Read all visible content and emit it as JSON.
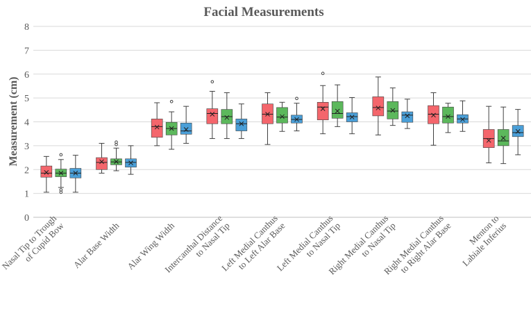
{
  "chart_data": {
    "type": "box",
    "title": "Facial Measurements",
    "ylabel": "Measurement (cm)",
    "xlabel": "",
    "ylim": [
      0,
      8
    ],
    "yticks": [
      "0",
      "1",
      "2",
      "3",
      "4",
      "5",
      "6",
      "7",
      "8"
    ],
    "grid": true,
    "series_colors": [
      "#F4666C",
      "#5CB85C",
      "#4A9FD8"
    ],
    "categories": [
      {
        "lines": [
          "Nasal Tip to Trough",
          "of Cupid Bow"
        ],
        "boxes": [
          {
            "min": 1.05,
            "q1": 1.68,
            "median": 1.85,
            "q3": 2.15,
            "max": 2.55,
            "mean": 1.88,
            "outliers": []
          },
          {
            "min": 1.25,
            "q1": 1.7,
            "median": 1.85,
            "q3": 2.02,
            "max": 2.42,
            "mean": 1.85,
            "outliers": [
              2.62,
              1.15,
              1.05
            ]
          },
          {
            "min": 1.05,
            "q1": 1.65,
            "median": 1.85,
            "q3": 2.05,
            "max": 2.6,
            "mean": 1.85,
            "outliers": []
          }
        ]
      },
      {
        "lines": [
          "Alar Base Width"
        ],
        "boxes": [
          {
            "min": 1.85,
            "q1": 2.0,
            "median": 2.3,
            "q3": 2.5,
            "max": 3.1,
            "mean": 2.33,
            "outliers": []
          },
          {
            "min": 1.95,
            "q1": 2.2,
            "median": 2.32,
            "q3": 2.45,
            "max": 2.9,
            "mean": 2.33,
            "outliers": [
              3.05,
              3.15
            ]
          },
          {
            "min": 1.8,
            "q1": 2.1,
            "median": 2.3,
            "q3": 2.45,
            "max": 3.0,
            "mean": 2.28,
            "outliers": []
          }
        ]
      },
      {
        "lines": [
          "Alar Wing Width"
        ],
        "boxes": [
          {
            "min": 3.0,
            "q1": 3.35,
            "median": 3.8,
            "q3": 4.12,
            "max": 4.8,
            "mean": 3.78,
            "outliers": []
          },
          {
            "min": 2.85,
            "q1": 3.45,
            "median": 3.72,
            "q3": 3.98,
            "max": 4.42,
            "mean": 3.72,
            "outliers": [
              4.85
            ]
          },
          {
            "min": 3.1,
            "q1": 3.48,
            "median": 3.62,
            "q3": 3.95,
            "max": 4.65,
            "mean": 3.68,
            "outliers": []
          }
        ]
      },
      {
        "lines": [
          "Intercanthal Distance",
          "to Nasal Tip"
        ],
        "boxes": [
          {
            "min": 3.3,
            "q1": 3.92,
            "median": 4.35,
            "q3": 4.55,
            "max": 5.28,
            "mean": 4.32,
            "outliers": [
              5.68
            ]
          },
          {
            "min": 3.3,
            "q1": 3.92,
            "median": 4.22,
            "q3": 4.52,
            "max": 5.22,
            "mean": 4.18,
            "outliers": []
          },
          {
            "min": 3.3,
            "q1": 3.62,
            "median": 3.92,
            "q3": 4.12,
            "max": 4.75,
            "mean": 3.92,
            "outliers": []
          }
        ]
      },
      {
        "lines": [
          "Left Medial Canthus",
          "to Left Alar Base"
        ],
        "boxes": [
          {
            "min": 3.05,
            "q1": 3.92,
            "median": 4.32,
            "q3": 4.75,
            "max": 5.22,
            "mean": 4.32,
            "outliers": []
          },
          {
            "min": 3.6,
            "q1": 3.95,
            "median": 4.2,
            "q3": 4.6,
            "max": 4.82,
            "mean": 4.22,
            "outliers": []
          },
          {
            "min": 3.62,
            "q1": 3.95,
            "median": 4.1,
            "q3": 4.28,
            "max": 4.78,
            "mean": 4.1,
            "outliers": [
              4.98
            ]
          }
        ]
      },
      {
        "lines": [
          "Left Medial Canthus",
          "to Nasal Tip"
        ],
        "boxes": [
          {
            "min": 3.5,
            "q1": 4.08,
            "median": 4.62,
            "q3": 4.82,
            "max": 5.52,
            "mean": 4.55,
            "outliers": [
              6.03
            ]
          },
          {
            "min": 3.8,
            "q1": 4.15,
            "median": 4.35,
            "q3": 4.85,
            "max": 5.55,
            "mean": 4.45,
            "outliers": []
          },
          {
            "min": 3.5,
            "q1": 4.0,
            "median": 4.22,
            "q3": 4.38,
            "max": 5.02,
            "mean": 4.2,
            "outliers": []
          }
        ]
      },
      {
        "lines": [
          "Right Medial Canthus",
          "to Nasal Tip"
        ],
        "boxes": [
          {
            "min": 3.45,
            "q1": 4.25,
            "median": 4.6,
            "q3": 5.05,
            "max": 5.88,
            "mean": 4.58,
            "outliers": []
          },
          {
            "min": 3.85,
            "q1": 4.12,
            "median": 4.45,
            "q3": 4.85,
            "max": 5.42,
            "mean": 4.48,
            "outliers": []
          },
          {
            "min": 3.72,
            "q1": 3.98,
            "median": 4.28,
            "q3": 4.42,
            "max": 4.95,
            "mean": 4.25,
            "outliers": []
          }
        ]
      },
      {
        "lines": [
          "Right Medial Canthus",
          "to Right Alar Base"
        ],
        "boxes": [
          {
            "min": 3.02,
            "q1": 3.92,
            "median": 4.32,
            "q3": 4.68,
            "max": 5.22,
            "mean": 4.28,
            "outliers": []
          },
          {
            "min": 3.55,
            "q1": 3.95,
            "median": 4.22,
            "q3": 4.62,
            "max": 4.78,
            "mean": 4.22,
            "outliers": []
          },
          {
            "min": 3.6,
            "q1": 3.95,
            "median": 4.12,
            "q3": 4.3,
            "max": 4.88,
            "mean": 4.1,
            "outliers": []
          }
        ]
      },
      {
        "lines": [
          "Menton to",
          "Labiale Inferius"
        ],
        "boxes": [
          {
            "min": 2.28,
            "q1": 2.92,
            "median": 3.3,
            "q3": 3.68,
            "max": 4.65,
            "mean": 3.22,
            "outliers": []
          },
          {
            "min": 2.25,
            "q1": 3.0,
            "median": 3.2,
            "q3": 3.68,
            "max": 4.62,
            "mean": 3.32,
            "outliers": []
          },
          {
            "min": 2.62,
            "q1": 3.38,
            "median": 3.55,
            "q3": 3.85,
            "max": 4.52,
            "mean": 3.6,
            "outliers": []
          }
        ]
      }
    ]
  }
}
